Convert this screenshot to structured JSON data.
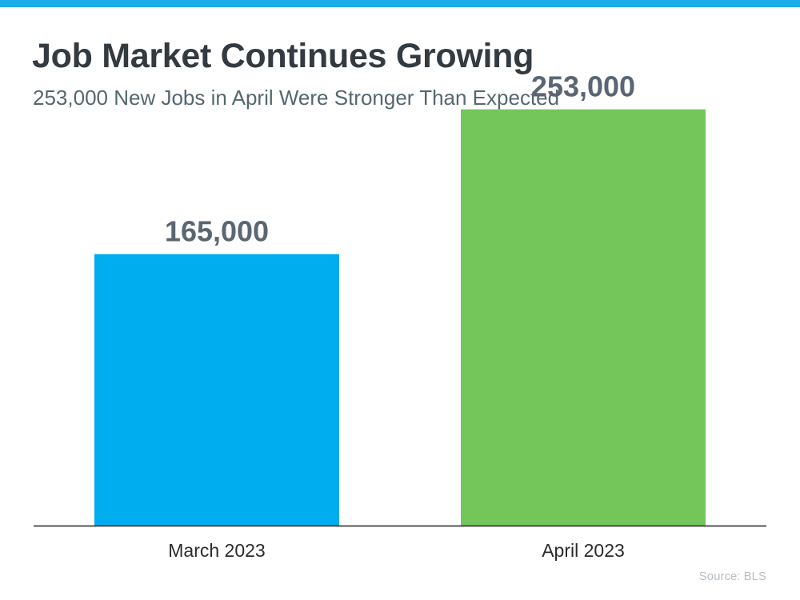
{
  "title": "Job Market Continues Growing",
  "subtitle": "253,000 New Jobs in April Were Stronger Than Expected",
  "source": "Source: BLS",
  "colors": {
    "accent_bar": "#1aaee8",
    "title": "#333a40",
    "subtitle": "#55676f",
    "value_label": "#5b6672",
    "axis": "#222222"
  },
  "chart_data": {
    "type": "bar",
    "categories": [
      "March 2023",
      "April 2023"
    ],
    "values": [
      165000,
      253000
    ],
    "data_labels": [
      "165,000",
      "253,000"
    ],
    "bar_colors": [
      "#00adef",
      "#74c65a"
    ],
    "title": "Job Market Continues Growing",
    "subtitle": "253,000 New Jobs in April Were Stronger Than Expected",
    "xlabel": "",
    "ylabel": "",
    "ylim": [
      0,
      300000
    ],
    "grid": false,
    "legend": "none"
  }
}
